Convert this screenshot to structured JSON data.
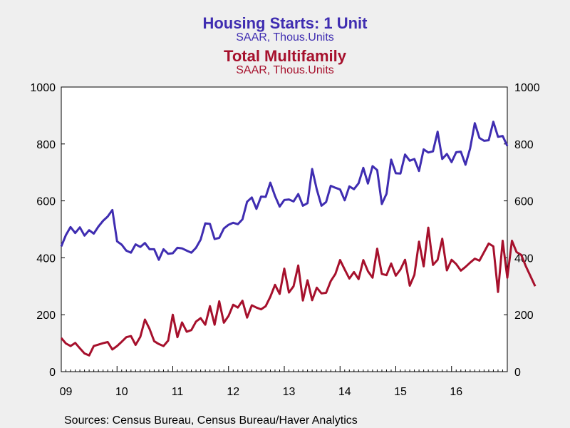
{
  "chart_data": {
    "type": "line",
    "titles": [
      {
        "title": "Housing Starts: 1 Unit",
        "subtitle": "SAAR, Thous.Units",
        "color": "#3f2db1"
      },
      {
        "title": "Total Multifamily",
        "subtitle": "SAAR, Thous.Units",
        "color": "#a6102c"
      }
    ],
    "x_start": "2009-01",
    "x_tick_labels": [
      "09",
      "10",
      "11",
      "12",
      "13",
      "14",
      "15",
      "16"
    ],
    "ylim": [
      0,
      1000
    ],
    "y_ticks": [
      "0",
      "200",
      "400",
      "600",
      "800",
      "1000"
    ],
    "grid": false,
    "source": "Sources:  Census Bureau, Census Bureau/Haver Analytics",
    "series": [
      {
        "name": "Housing Starts: 1 Unit",
        "color": "#3f2db1",
        "values": [
          440,
          480,
          508,
          487,
          507,
          478,
          497,
          485,
          510,
          530,
          545,
          568,
          458,
          446,
          425,
          418,
          447,
          438,
          452,
          430,
          430,
          393,
          430,
          414,
          416,
          435,
          433,
          425,
          418,
          435,
          464,
          521,
          519,
          466,
          470,
          503,
          516,
          523,
          518,
          535,
          597,
          612,
          572,
          615,
          614,
          664,
          617,
          580,
          603,
          605,
          598,
          624,
          583,
          592,
          712,
          640,
          583,
          596,
          653,
          646,
          640,
          602,
          651,
          641,
          662,
          716,
          661,
          722,
          708,
          589,
          625,
          745,
          697,
          696,
          763,
          741,
          747,
          705,
          781,
          770,
          774,
          843,
          747,
          765,
          736,
          771,
          773,
          727,
          784,
          873,
          821,
          811,
          813,
          878,
          825,
          828,
          793
        ]
      },
      {
        "name": "Total Multifamily",
        "color": "#a6102c",
        "values": [
          118,
          99,
          90,
          101,
          82,
          64,
          57,
          90,
          95,
          100,
          104,
          78,
          90,
          105,
          121,
          125,
          94,
          122,
          183,
          150,
          107,
          97,
          90,
          109,
          200,
          121,
          173,
          140,
          146,
          176,
          188,
          165,
          230,
          165,
          247,
          172,
          196,
          235,
          225,
          249,
          190,
          233,
          225,
          219,
          230,
          263,
          305,
          273,
          362,
          278,
          300,
          373,
          250,
          321,
          251,
          295,
          275,
          277,
          318,
          343,
          392,
          359,
          327,
          350,
          325,
          392,
          353,
          330,
          432,
          343,
          339,
          380,
          337,
          359,
          393,
          302,
          340,
          457,
          370,
          506,
          375,
          393,
          467,
          356,
          393,
          378,
          355,
          368,
          383,
          397,
          390,
          420,
          450,
          440,
          280,
          460,
          330,
          460,
          420,
          410,
          370,
          335,
          300
        ]
      }
    ]
  }
}
